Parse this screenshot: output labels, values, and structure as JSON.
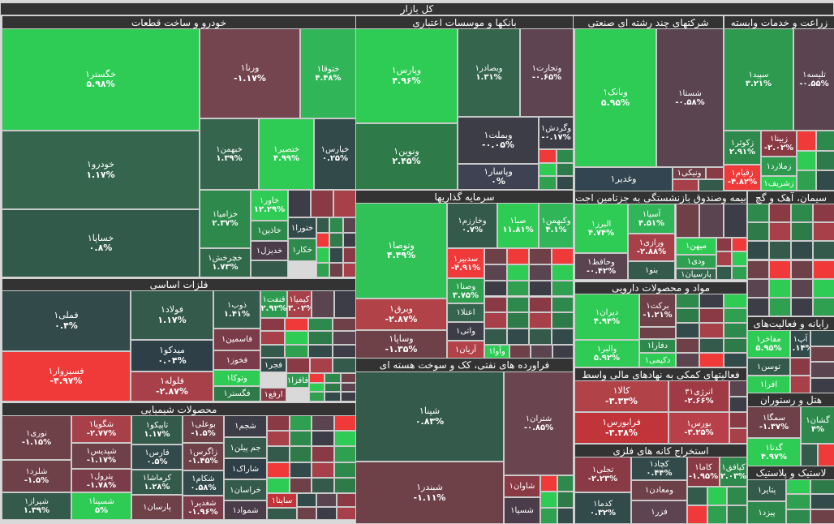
{
  "title": "کل بازار",
  "sectors": [
    {
      "title": "خودرو و ساخت قطعات",
      "tiles": [
        {
          "name": "خگستر۱",
          "pct": "۵.۹۸%",
          "color": "#2ecc55"
        },
        {
          "name": "خودرو۱",
          "pct": "۱.۱۷%",
          "color": "#35654d"
        },
        {
          "name": "خساپا۱",
          "pct": "۰.۸%",
          "color": "#325a4a"
        },
        {
          "name": "ورنا۱",
          "pct": "-۱.۱۷%",
          "color": "#74444f"
        },
        {
          "name": "ختوقا۱",
          "pct": "۴.۴۸%",
          "color": "#30b558"
        },
        {
          "name": "خبهمن۱",
          "pct": "۱.۳۹%",
          "color": "#35654d"
        },
        {
          "name": "خنصیر۱",
          "pct": "۴.۹۹%",
          "color": "#2ecc55"
        },
        {
          "name": "خپارس۱",
          "pct": "۰.۲۵%",
          "color": "#334a4a"
        },
        {
          "name": "خزامیا۱",
          "pct": "۲.۳۷%",
          "color": "#2e8a4c"
        },
        {
          "name": "خچرخش۱",
          "pct": "۱.۷۳%",
          "color": "#316a4a"
        },
        {
          "name": "خاور۱",
          "pct": "۱۲.۲۹%",
          "color": "#2ecc55"
        },
        {
          "name": "خاذین۱",
          "pct": "",
          "color": "#2e8a4c"
        },
        {
          "name": "خدیزل۱",
          "pct": "",
          "color": "#4a3c48"
        },
        {
          "name": "ختورا۱",
          "pct": "",
          "color": "#334a4a"
        },
        {
          "name": "خکار۱",
          "pct": "",
          "color": "#2e8a4c"
        }
      ]
    },
    {
      "title": "بانکها و موسسات اعتباری",
      "tiles": [
        {
          "name": "وپارس۱",
          "pct": "۴.۹۶%",
          "color": "#2ecc55"
        },
        {
          "name": "ونوین۱",
          "pct": "۲.۴۵%",
          "color": "#2e7a48"
        },
        {
          "name": "وبصادر۱",
          "pct": "۱.۳۱%",
          "color": "#35654d"
        },
        {
          "name": "وتجارت۱",
          "pct": "-۰.۶۵%",
          "color": "#5e4450"
        },
        {
          "name": "وبملت۱",
          "pct": "-۰.۰۵%",
          "color": "#3d3d48"
        },
        {
          "name": "وپاسار۱",
          "pct": "۰%",
          "color": "#3e4252"
        },
        {
          "name": "وگردش۱",
          "pct": "-۰.۱۷%",
          "color": "#3d3d48"
        }
      ]
    },
    {
      "title": "سرمایه گذاریها",
      "tiles": [
        {
          "name": "وتوصا۱",
          "pct": "۴.۴۹%",
          "color": "#30c257"
        },
        {
          "name": "وبرق۱",
          "pct": "-۲.۸۷%",
          "color": "#b04248"
        },
        {
          "name": "وساپا۱",
          "pct": "-۱.۳۵%",
          "color": "#6e4048"
        },
        {
          "name": "وخارزم۱",
          "pct": "۰.۷%",
          "color": "#335a4a"
        },
        {
          "name": "صبا۱",
          "pct": "۱۱.۸۱%",
          "color": "#2ecc55"
        },
        {
          "name": "وکبهمن۱",
          "pct": "۴.۱%",
          "color": "#30b558"
        },
        {
          "name": "سدبیر۱",
          "pct": "-۴.۹۱%",
          "color": "#f03a3a"
        },
        {
          "name": "وصنا۱",
          "pct": "۳.۷۵%",
          "color": "#2ea050"
        },
        {
          "name": "اعتلا۱",
          "pct": "",
          "color": "#35654d"
        },
        {
          "name": "واتی۱",
          "pct": "",
          "color": "#3d3d48"
        },
        {
          "name": "آریان۱",
          "pct": "",
          "color": "#b04248"
        },
        {
          "name": "وآوا۱",
          "pct": "",
          "color": "#2ecc55"
        }
      ]
    },
    {
      "title": "شرکتهای چند رشته ای صنعتی",
      "tiles": [
        {
          "name": "وبانک۱",
          "pct": "۵.۹۵%",
          "color": "#2ecc55"
        },
        {
          "name": "شستا۱",
          "pct": "-۰.۵۸%",
          "color": "#5a4450"
        },
        {
          "name": "وغدیر۱",
          "pct": "",
          "color": "#334550"
        },
        {
          "name": "ونیکی۱",
          "pct": "",
          "color": "#6e4048"
        }
      ]
    },
    {
      "title": "زراعت و خدمات وابسته",
      "tiles": [
        {
          "name": "سپید۱",
          "pct": "۳.۲۱%",
          "color": "#2e9a50"
        },
        {
          "name": "تلیسه۱",
          "pct": "-۰.۵۵%",
          "color": "#5a4450"
        },
        {
          "name": "زکوثر۱",
          "pct": "۲.۹۱%",
          "color": "#2e8a4c"
        },
        {
          "name": "زبینا۱",
          "pct": "-۲.۰۲%",
          "color": "#8a3a44"
        },
        {
          "name": "زملارد۱",
          "pct": "",
          "color": "#2e9a50"
        },
        {
          "name": "زشریف۱",
          "pct": "",
          "color": "#2ecc55"
        },
        {
          "name": "زقیام۱",
          "pct": "-۴.۸۲%",
          "color": "#f03a3a"
        }
      ]
    },
    {
      "title": "بیمه وصندوق بازنشستگی به جزتامین اجت",
      "tiles": [
        {
          "name": "البرز۱",
          "pct": "۴.۷۴%",
          "color": "#2ecc55"
        },
        {
          "name": "وحافظ۱",
          "pct": "-۰.۴۲%",
          "color": "#5a4450"
        },
        {
          "name": "آسیا۱",
          "pct": "۴.۵۱%",
          "color": "#30b558"
        },
        {
          "name": "ورازی۱",
          "pct": "-۲.۸۸%",
          "color": "#a8404a"
        },
        {
          "name": "بنو۱",
          "pct": "",
          "color": "#335a4a"
        },
        {
          "name": "میهن۱",
          "pct": "",
          "color": "#2ecc55"
        },
        {
          "name": "ودی۱",
          "pct": "",
          "color": "#2ea050"
        },
        {
          "name": "پارسیان۱",
          "pct": "",
          "color": "#35654d"
        }
      ]
    },
    {
      "title": "سیمان، آهک و گچ",
      "tiles": []
    },
    {
      "title": "مواد و محصولات دارویی",
      "tiles": [
        {
          "name": "دیران۱",
          "pct": "۴.۹۴%",
          "color": "#2ecc55"
        },
        {
          "name": "والبر۱",
          "pct": "۵.۹۲%",
          "color": "#2ecc55"
        },
        {
          "name": "برکت۱",
          "pct": "-۱.۲۱%",
          "color": "#6e4048"
        },
        {
          "name": "دفارا۱",
          "pct": "",
          "color": "#2e8a4c"
        },
        {
          "name": "دکیمی۱",
          "pct": "",
          "color": "#2ecc55"
        }
      ]
    },
    {
      "title": "فعالیتهای کمکی به نهادهای مالی واسط",
      "tiles": [
        {
          "name": "کالا۱",
          "pct": "-۳.۳۳%",
          "color": "#b04248"
        },
        {
          "name": "انرژی۳۱",
          "pct": "-۲.۶۶%",
          "color": "#a03a44"
        },
        {
          "name": "فرابورس۱",
          "pct": "-۳.۳۸%",
          "color": "#c0343a"
        },
        {
          "name": "بورس۱",
          "pct": "-۳.۲۵%",
          "color": "#b8404a"
        }
      ]
    },
    {
      "title": "استخراج کانه های فلزی",
      "tiles": [
        {
          "name": "تجلی۱",
          "pct": "-۲.۲۳%",
          "color": "#8a3a44"
        },
        {
          "name": "کدما۱",
          "pct": "۰.۳۲%",
          "color": "#334a4a"
        },
        {
          "name": "کچاد۱",
          "pct": "۰.۴۴%",
          "color": "#334a4a"
        },
        {
          "name": "ومعادن۱",
          "pct": "",
          "color": "#6e4048"
        },
        {
          "name": "فزر۱",
          "pct": "",
          "color": "#5e4450"
        },
        {
          "name": "کاما۱",
          "pct": "-۱.۹۵%",
          "color": "#8a3a44"
        },
        {
          "name": "کیافق۱",
          "pct": "۲.۰۳%",
          "color": "#2e8a4c"
        }
      ]
    },
    {
      "title": "رایانه و فعالیت‌های",
      "tiles": [
        {
          "name": "مفاخر۱",
          "pct": "۵.۹۵%",
          "color": "#2ecc55"
        },
        {
          "name": "آپ۱",
          "pct": "۰.۱۴%",
          "color": "#334a4a"
        },
        {
          "name": "توسن۱",
          "pct": "",
          "color": "#335a4a"
        },
        {
          "name": "افرا۱",
          "pct": "",
          "color": "#2ecc55"
        }
      ]
    },
    {
      "title": "هتل و رستوران",
      "tiles": [
        {
          "name": "سمگا۱",
          "pct": "-۱.۳۷%",
          "color": "#6e4048"
        },
        {
          "name": "گدنا۱",
          "pct": "۴.۹۷%",
          "color": "#2ecc55"
        },
        {
          "name": "گشان۱",
          "pct": "۴%",
          "color": "#2e8a4c"
        }
      ]
    },
    {
      "title": "لاستیک و پلاستیک",
      "tiles": [
        {
          "name": "پتایر۱",
          "pct": "",
          "color": "#335a4a"
        },
        {
          "name": "پیزد۱",
          "pct": "",
          "color": "#2e8a4c"
        }
      ]
    },
    {
      "title": "فلزات اساسی",
      "tiles": [
        {
          "name": "فملی۱",
          "pct": "۰.۴%",
          "color": "#334a4a"
        },
        {
          "name": "فسبزوار۱",
          "pct": "-۴.۹۷%",
          "color": "#f03a3a"
        },
        {
          "name": "فولاد۱",
          "pct": "۱.۱۷%",
          "color": "#335a4a"
        },
        {
          "name": "میدکو۱",
          "pct": "۰.۰۴%",
          "color": "#2e3f48"
        },
        {
          "name": "فلوله۱",
          "pct": "-۲.۸۷%",
          "color": "#a8404a"
        },
        {
          "name": "ذوب۱",
          "pct": "۱.۴۱%",
          "color": "#335a4a"
        },
        {
          "name": "فاسمین۱",
          "pct": "",
          "color": "#7a3c48"
        },
        {
          "name": "فخوز۱",
          "pct": "",
          "color": "#7a3c48"
        },
        {
          "name": "وتوکا۱",
          "pct": "",
          "color": "#2ecc55"
        },
        {
          "name": "فگستر۱",
          "pct": "",
          "color": "#2e7a48"
        },
        {
          "name": "فنفت۱",
          "pct": "۲.۹۲%",
          "color": "#2e9a50"
        },
        {
          "name": "کیمیا۱",
          "pct": "-۳.۰۲%",
          "color": "#a8404a"
        },
        {
          "name": "فجر۱",
          "pct": "",
          "color": "#334a4a"
        },
        {
          "name": "فافزا۱",
          "pct": "",
          "color": "#2e9a50"
        },
        {
          "name": "ارفع۱",
          "pct": "",
          "color": "#8a3a44"
        }
      ]
    },
    {
      "title": "محصولات شیمیایی",
      "tiles": [
        {
          "name": "نوری۱",
          "pct": "-۱.۱۵%",
          "color": "#6e4048"
        },
        {
          "name": "شلرد۱",
          "pct": "-۱.۵%",
          "color": "#6e4048"
        },
        {
          "name": "شیراز۱",
          "pct": "۱.۳۹%",
          "color": "#335a4a"
        },
        {
          "name": "شگویا۱",
          "pct": "-۲.۷۷%",
          "color": "#a8404a"
        },
        {
          "name": "شپدیس۱",
          "pct": "-۱.۱۷%",
          "color": "#6e4048"
        },
        {
          "name": "پترول۱",
          "pct": "-۱.۷۸%",
          "color": "#7a3c48"
        },
        {
          "name": "شسینا۱",
          "pct": "۵%",
          "color": "#2ecc55"
        },
        {
          "name": "تاپیکو۱",
          "pct": "۱.۱۷%",
          "color": "#335a4a"
        },
        {
          "name": "فارس۱",
          "pct": "۰.۵%",
          "color": "#334a4a"
        },
        {
          "name": "کرماشا۱",
          "pct": "۱.۲۸%",
          "color": "#335a4a"
        },
        {
          "name": "پارسان۱",
          "pct": "",
          "color": "#6e4048"
        },
        {
          "name": "بوعلی۱",
          "pct": "-۱.۵%",
          "color": "#6e4048"
        },
        {
          "name": "زاگرس۱",
          "pct": "-۱.۴۵%",
          "color": "#6e4048"
        },
        {
          "name": "شکام۱",
          "pct": "۰.۵۸%",
          "color": "#334a4a"
        },
        {
          "name": "شغدیر۱",
          "pct": "-۱.۹۶%",
          "color": "#7a3c48"
        },
        {
          "name": "شجم۱",
          "pct": "",
          "color": "#3d3d48"
        },
        {
          "name": "جم پیلن۱",
          "pct": "",
          "color": "#335a4a"
        },
        {
          "name": "شاراک۱",
          "pct": "",
          "color": "#2e3f48"
        },
        {
          "name": "خراسان۱",
          "pct": "",
          "color": "#335a4a"
        },
        {
          "name": "شمواد۱",
          "pct": "",
          "color": "#4a3c48"
        },
        {
          "name": "ساینا۱",
          "pct": "",
          "color": "#c0343a"
        }
      ]
    },
    {
      "title": "فراورده های نفتی، کک و سوخت هسته ای",
      "tiles": [
        {
          "name": "شپنا۱",
          "pct": "۰.۸۳%",
          "color": "#335a4a"
        },
        {
          "name": "شبندر۱",
          "pct": "-۱.۱۱%",
          "color": "#6e4048"
        },
        {
          "name": "شتران۱",
          "pct": "-۰.۸۵%",
          "color": "#6a444e"
        },
        {
          "name": "شاوان۱",
          "pct": "",
          "color": "#8a3a44"
        },
        {
          "name": "شسپا۱",
          "pct": "",
          "color": "#4a3c48"
        }
      ]
    }
  ]
}
